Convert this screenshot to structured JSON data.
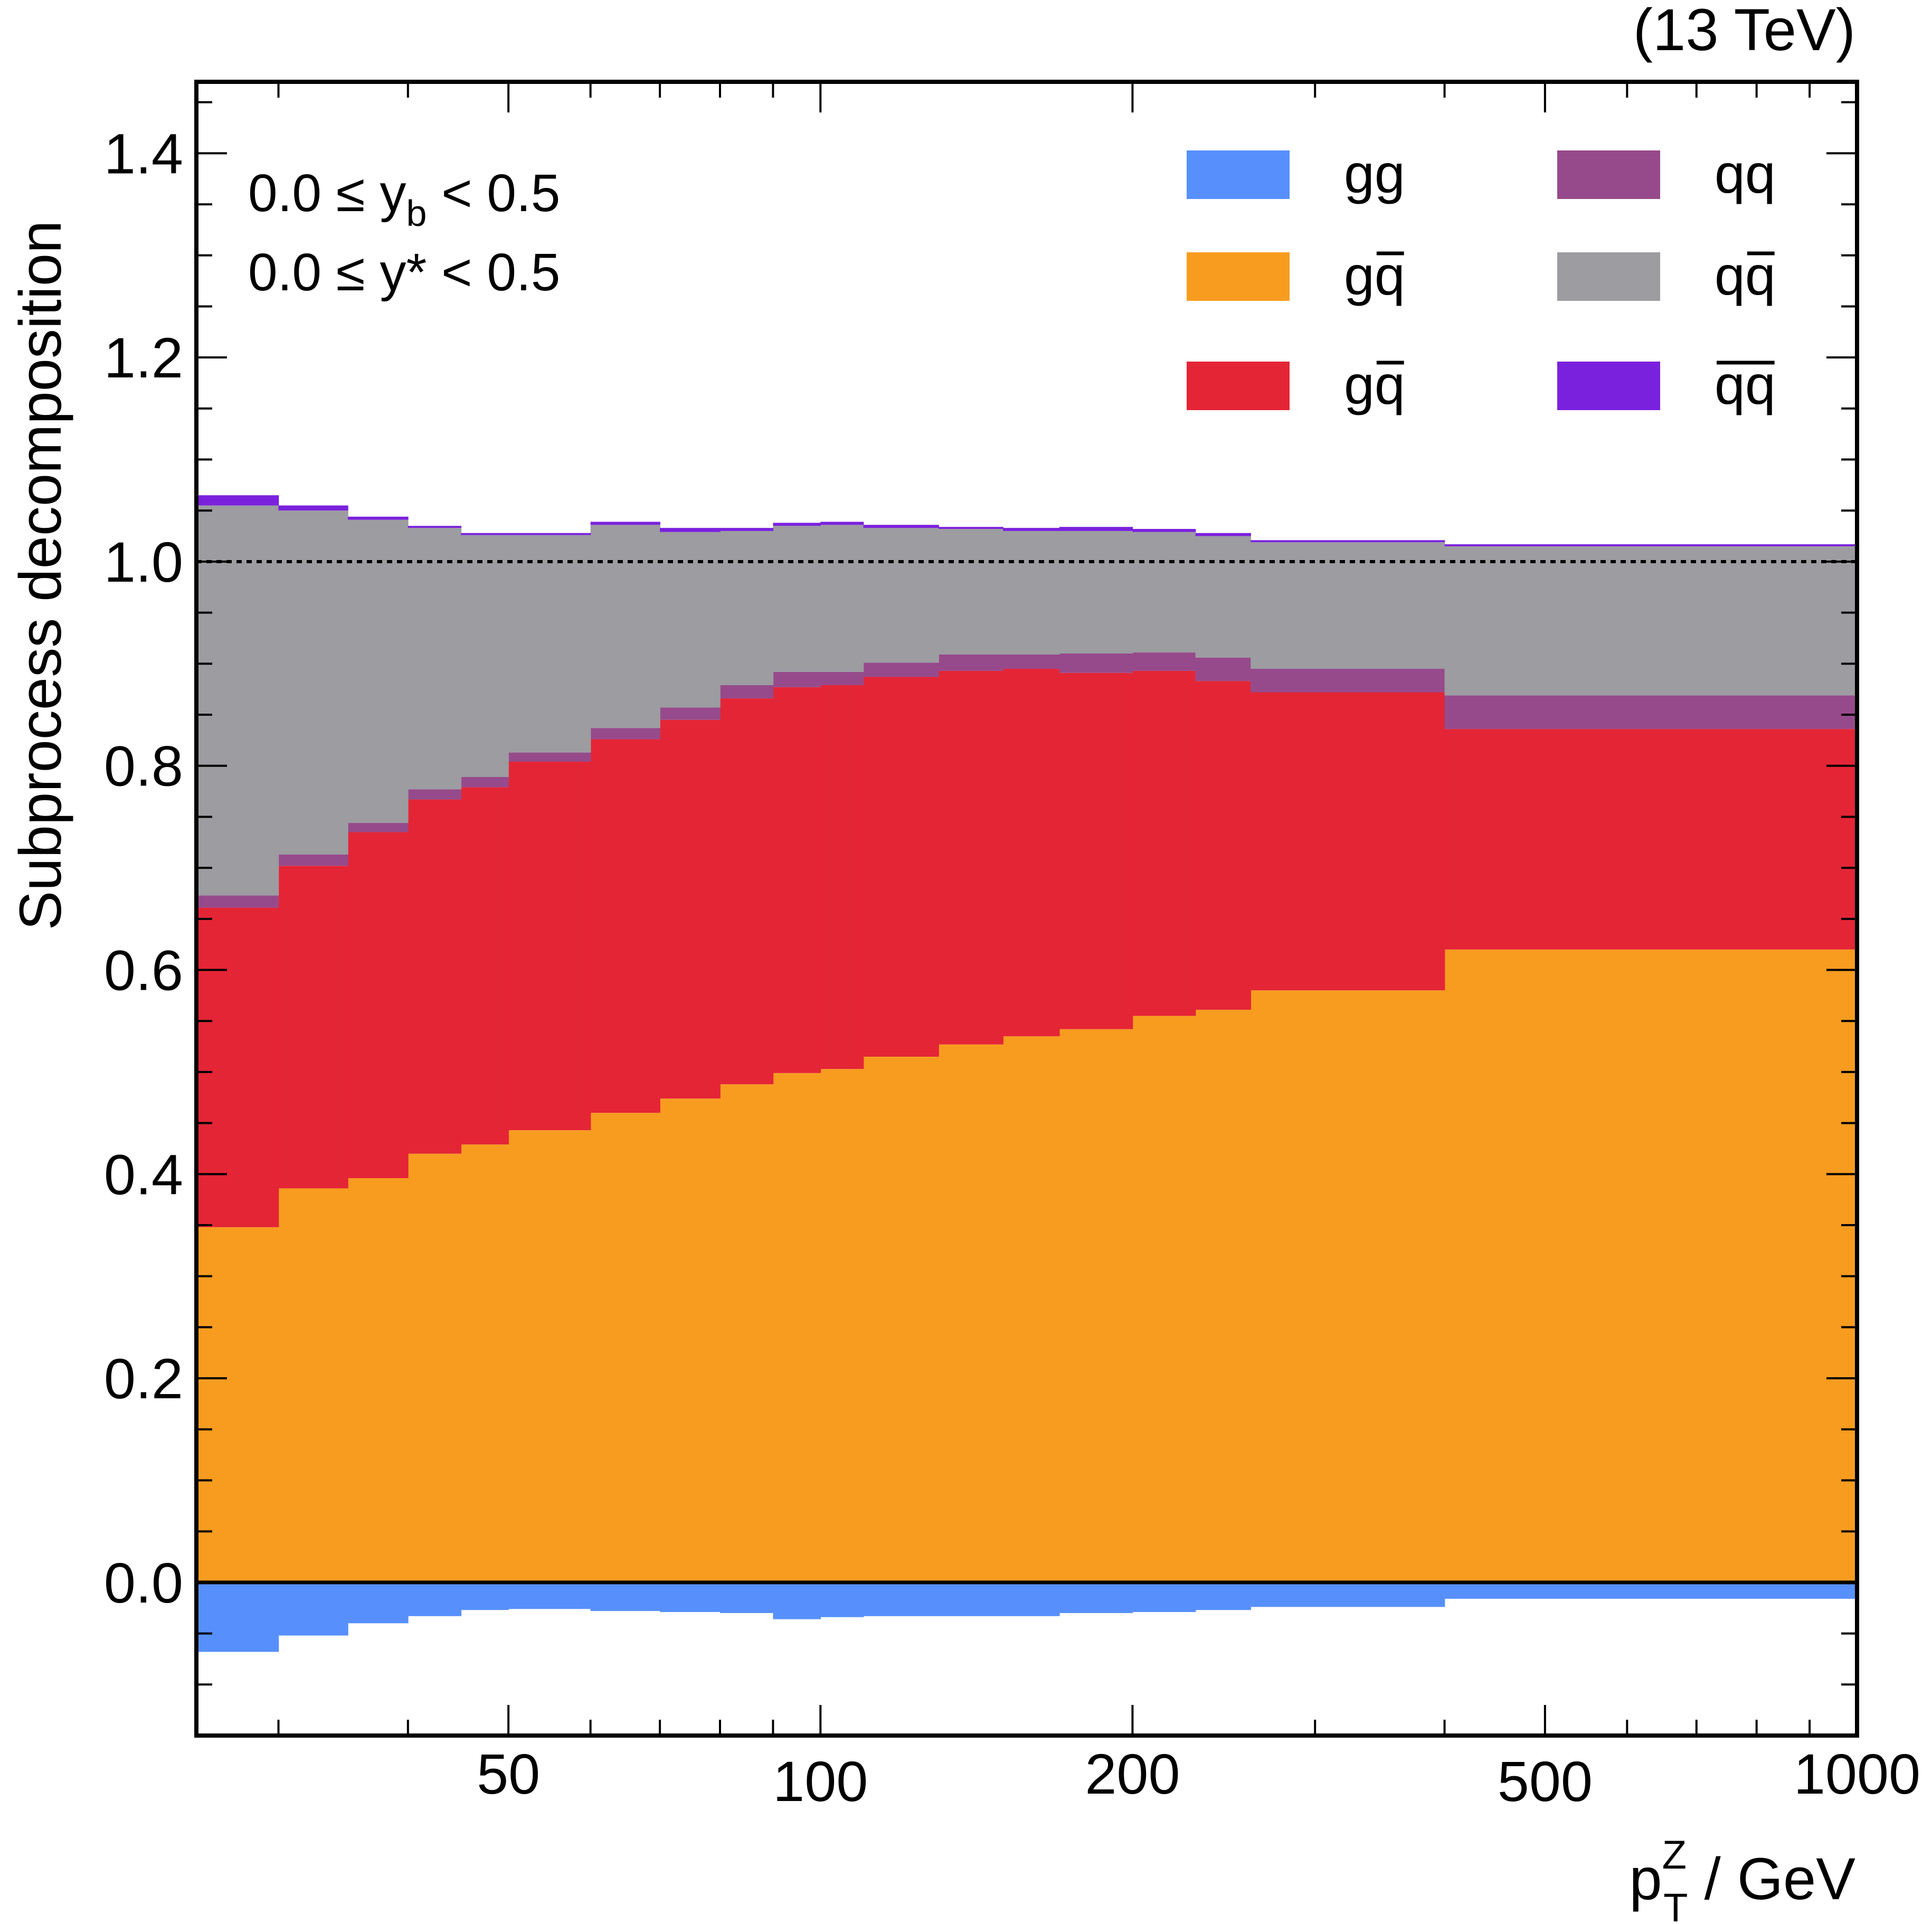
{
  "chart_data": {
    "type": "stacked-histogram",
    "energy_label": "(13 TeV)",
    "ylabel": "Subprocess decomposition",
    "xlabel": {
      "main": "p",
      "sub": "T",
      "sup": "Z",
      "unit": " / GeV"
    },
    "xscale": "log",
    "xlim": [
      25,
      1000
    ],
    "ylim": [
      -0.15,
      1.47
    ],
    "xticks": [
      50,
      100,
      200,
      500,
      1000
    ],
    "xtick_labels": [
      "50",
      "100",
      "200",
      "500",
      "1000"
    ],
    "yticks": [
      0.0,
      0.2,
      0.4,
      0.6,
      0.8,
      1.0,
      1.2,
      1.4
    ],
    "ytick_labels": [
      "0.0",
      "0.2",
      "0.4",
      "0.6",
      "0.8",
      "1.0",
      "1.2",
      "1.4"
    ],
    "reference_line": 1.0,
    "annotations": {
      "yb": {
        "pre": "0.0 ≤ y",
        "sub": "b",
        "post": " < 0.5"
      },
      "ystar": {
        "pre": "0.0 ≤ y",
        "sup": "*",
        "post": " < 0.5"
      }
    },
    "legend_position": "top-right",
    "bin_edges": [
      25,
      30,
      35,
      40,
      45,
      50,
      60,
      70,
      80,
      90,
      100,
      110,
      130,
      150,
      170,
      200,
      230,
      260,
      400,
      1000
    ],
    "series": [
      {
        "name": "gg",
        "label": "gg",
        "overbar": "",
        "color": "#5790fc",
        "values": [
          -0.068,
          -0.052,
          -0.04,
          -0.033,
          -0.027,
          -0.026,
          -0.028,
          -0.029,
          -0.03,
          -0.036,
          -0.034,
          -0.033,
          -0.033,
          -0.033,
          -0.03,
          -0.029,
          -0.027,
          -0.024,
          -0.016
        ]
      },
      {
        "name": "gq",
        "label": "g",
        "overbar": "q",
        "color": "#f89c20",
        "values": [
          0.348,
          0.386,
          0.396,
          0.42,
          0.429,
          0.443,
          0.46,
          0.474,
          0.488,
          0.499,
          0.503,
          0.515,
          0.527,
          0.535,
          0.542,
          0.555,
          0.561,
          0.58,
          0.62
        ]
      },
      {
        "name": "gqbar",
        "label": "g",
        "overbar": "q",
        "color": "#e42536",
        "values": [
          0.313,
          0.316,
          0.339,
          0.347,
          0.35,
          0.361,
          0.366,
          0.371,
          0.378,
          0.378,
          0.376,
          0.372,
          0.366,
          0.36,
          0.349,
          0.338,
          0.322,
          0.292,
          0.216
        ]
      },
      {
        "name": "qq",
        "label": "qq",
        "overbar": "",
        "color": "#964a8b",
        "values": [
          0.012,
          0.011,
          0.009,
          0.01,
          0.01,
          0.009,
          0.011,
          0.012,
          0.013,
          0.015,
          0.013,
          0.014,
          0.016,
          0.014,
          0.019,
          0.018,
          0.023,
          0.023,
          0.033
        ]
      },
      {
        "name": "qqbar",
        "label": "q",
        "overbar": "q",
        "color": "#9c9ca1",
        "values": [
          0.382,
          0.337,
          0.297,
          0.256,
          0.237,
          0.213,
          0.199,
          0.172,
          0.151,
          0.143,
          0.144,
          0.132,
          0.123,
          0.121,
          0.12,
          0.118,
          0.119,
          0.124,
          0.146
        ]
      },
      {
        "name": "qbarqbar",
        "label": "",
        "overbar": "qq",
        "color": "#7a21dd",
        "values": [
          0.01,
          0.005,
          0.003,
          0.002,
          0.002,
          0.002,
          0.003,
          0.004,
          0.003,
          0.003,
          0.003,
          0.003,
          0.002,
          0.003,
          0.004,
          0.003,
          0.003,
          0.002,
          0.002
        ]
      }
    ]
  }
}
